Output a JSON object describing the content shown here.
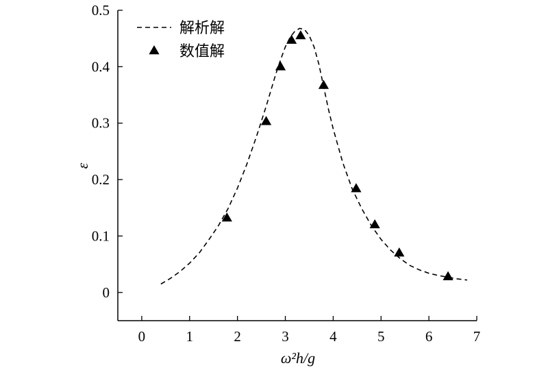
{
  "chart_data": {
    "type": "line",
    "xlabel": "ω²h/g",
    "ylabel": "ε",
    "xlim": [
      -0.5,
      7
    ],
    "ylim": [
      -0.05,
      0.5
    ],
    "xticks": [
      "0",
      "1",
      "2",
      "3",
      "4",
      "5",
      "6",
      "7"
    ],
    "yticks": [
      "0",
      "0.1",
      "0.2",
      "0.3",
      "0.4",
      "0.5"
    ],
    "grid": false,
    "legend_position": "top-left",
    "series": [
      {
        "name": "解析解",
        "style": "dashed-line",
        "color": "#000000",
        "x": [
          0.4,
          0.6,
          0.8,
          1.0,
          1.2,
          1.4,
          1.6,
          1.8,
          2.0,
          2.2,
          2.4,
          2.6,
          2.8,
          2.9,
          3.0,
          3.1,
          3.2,
          3.3,
          3.4,
          3.5,
          3.6,
          3.7,
          3.8,
          3.9,
          4.0,
          4.2,
          4.4,
          4.6,
          4.8,
          5.0,
          5.2,
          5.4,
          5.6,
          5.8,
          6.0,
          6.2,
          6.4,
          6.6,
          6.8
        ],
        "y": [
          0.015,
          0.025,
          0.037,
          0.052,
          0.07,
          0.093,
          0.118,
          0.148,
          0.185,
          0.228,
          0.277,
          0.33,
          0.387,
          0.412,
          0.435,
          0.452,
          0.463,
          0.468,
          0.466,
          0.455,
          0.435,
          0.405,
          0.365,
          0.325,
          0.29,
          0.23,
          0.183,
          0.148,
          0.118,
          0.094,
          0.075,
          0.06,
          0.048,
          0.04,
          0.034,
          0.03,
          0.027,
          0.024,
          0.022
        ]
      },
      {
        "name": "数值解",
        "style": "triangle-marker",
        "color": "#000000",
        "x": [
          1.78,
          2.6,
          2.9,
          3.13,
          3.32,
          3.8,
          4.48,
          4.87,
          5.38,
          6.4
        ],
        "y": [
          0.132,
          0.303,
          0.4,
          0.447,
          0.455,
          0.367,
          0.184,
          0.12,
          0.07,
          0.028
        ]
      }
    ]
  }
}
